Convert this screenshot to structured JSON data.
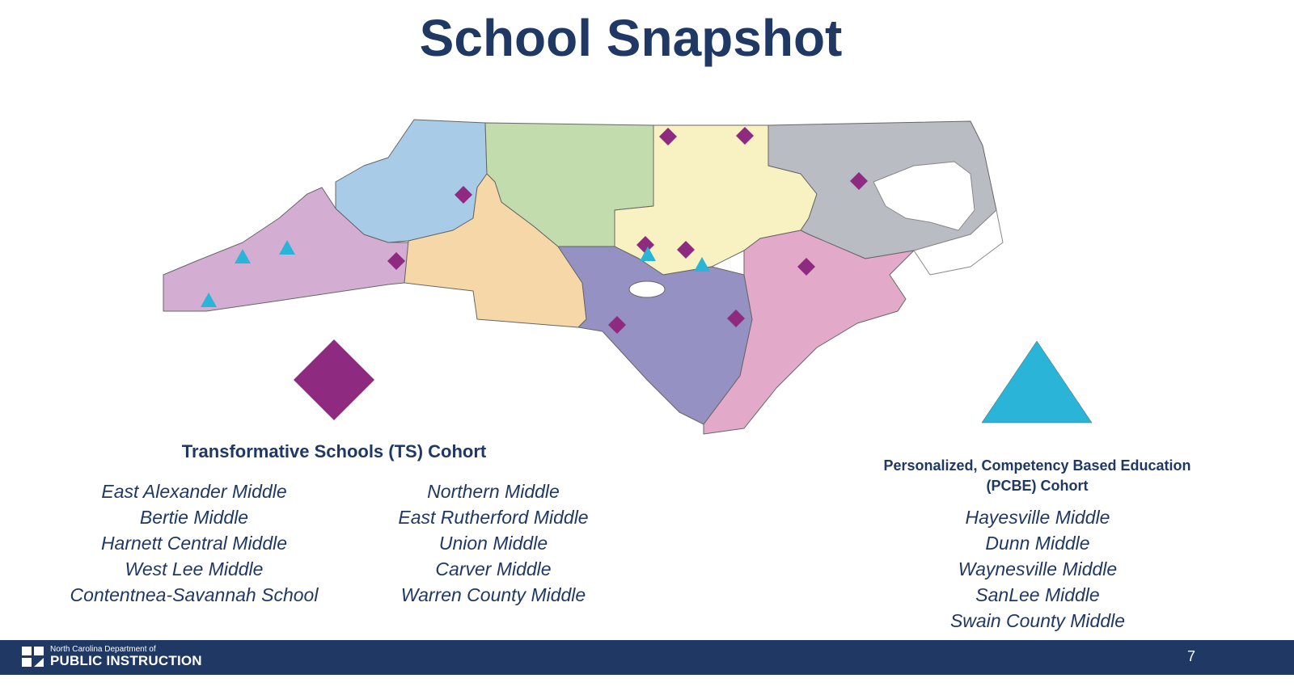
{
  "title": "School Snapshot",
  "colors": {
    "navy": "#1f3864",
    "ts_marker": "#8e2a80",
    "pcbe_marker": "#29b4d8",
    "regions": [
      "#d4aed2",
      "#a8cbe8",
      "#f6d7a8",
      "#c3dcae",
      "#f8f1c1",
      "#b9bcc2",
      "#9591c2",
      "#e3a9c9"
    ]
  },
  "legend": {
    "ts": {
      "icon": "diamond",
      "heading": "Transformative Schools (TS) Cohort",
      "schools_left": [
        "East Alexander Middle",
        "Bertie Middle",
        "Harnett Central Middle",
        "West Lee Middle",
        "Contentnea-Savannah School"
      ],
      "schools_right": [
        "Northern Middle",
        "East Rutherford Middle",
        "Union Middle",
        "Carver Middle",
        "Warren County Middle"
      ]
    },
    "pcbe": {
      "icon": "triangle",
      "heading_line1": "Personalized, Competency Based Education",
      "heading_line2": "(PCBE) Cohort",
      "schools": [
        "Hayesville Middle",
        "Dunn Middle",
        "Waynesville Middle",
        "SanLee Middle",
        "Swain County Middle"
      ]
    }
  },
  "footer": {
    "org_line1": "North Carolina Department of",
    "org_line2": "PUBLIC INSTRUCTION",
    "page_number": "7"
  }
}
